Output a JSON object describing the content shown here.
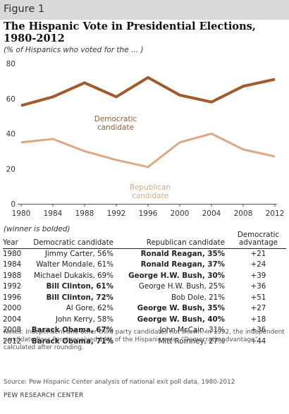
{
  "figure_label": "Figure 1",
  "title_line1": "The Hispanic Vote in Presidential Elections,",
  "title_line2": "1980-2012",
  "subtitle": "(% of Hispanics who voted for the ... )",
  "winner_note": "(winner is bolded)",
  "chart_data": {
    "type": "line",
    "title": "The Hispanic Vote in Presidential Elections, 1980-2012",
    "ylabel": "",
    "xlabel": "",
    "x": [
      1980,
      1984,
      1988,
      1992,
      1996,
      2000,
      2004,
      2008,
      2012
    ],
    "x_ticks": [
      "1980",
      "1984",
      "1988",
      "1992",
      "1996",
      "2000",
      "2004",
      "2008",
      "2012"
    ],
    "ylim": [
      0,
      80
    ],
    "y_ticks": [
      "0",
      "20",
      "40",
      "60",
      "80"
    ],
    "grid": false,
    "series": [
      {
        "name": "Democratic candidate",
        "label_lines": [
          "Democratic",
          "candidate"
        ],
        "color": "#a05a2c",
        "values": [
          56,
          61,
          69,
          61,
          72,
          62,
          58,
          67,
          71
        ]
      },
      {
        "name": "Republican candidate",
        "label_lines": [
          "Republican",
          "candidate"
        ],
        "color": "#e0a783",
        "values": [
          35,
          37,
          30,
          25,
          21,
          35,
          40,
          31,
          27
        ]
      }
    ]
  },
  "table": {
    "headers": {
      "year": "Year",
      "dem": "Democratic candidate",
      "rep": "Republican candidate",
      "adv_line1": "Democratic",
      "adv_line2": "advantage"
    },
    "rows": [
      {
        "year": "1980",
        "dem": "Jimmy Carter, 56%",
        "rep": "Ronald Reagan, 35%",
        "adv": "+21",
        "winner": "rep"
      },
      {
        "year": "1984",
        "dem": "Walter Mondale, 61%",
        "rep": "Ronald Reagan, 37%",
        "adv": "+24",
        "winner": "rep"
      },
      {
        "year": "1988",
        "dem": "Michael Dukakis, 69%",
        "rep": "George H.W. Bush, 30%",
        "adv": "+39",
        "winner": "rep"
      },
      {
        "year": "1992",
        "dem": "Bill Clinton, 61%",
        "rep": "George H.W. Bush, 25%",
        "adv": "+36",
        "winner": "dem"
      },
      {
        "year": "1996",
        "dem": "Bill Clinton, 72%",
        "rep": "Bob Dole, 21%",
        "adv": "+51",
        "winner": "dem"
      },
      {
        "year": "2000",
        "dem": "Al Gore, 62%",
        "rep": "George W. Bush, 35%",
        "adv": "+27",
        "winner": "rep"
      },
      {
        "year": "2004",
        "dem": "John Kerry, 58%",
        "rep": "George W. Bush, 40%",
        "adv": "+18",
        "winner": "rep"
      },
      {
        "year": "2008",
        "dem": "Barack Obama, 67%",
        "rep": "John McCain, 31%",
        "adv": "+36",
        "winner": "dem"
      },
      {
        "year": "2012",
        "dem": "Barack Obama, 71%",
        "rep": "Mitt Romney, 27%",
        "adv": "+44",
        "winner": "dem"
      }
    ]
  },
  "notes": "Notes: Independent and other third party candidates not shown. In 1992, the independent candidate Ross Perot received 14% of the Hispanic vote. “Democratic advantage” calculated after rounding.",
  "source": "Source: Pew Hispanic Center analysis of national exit poll data, 1980-2012",
  "org": "PEW RESEARCH CENTER"
}
